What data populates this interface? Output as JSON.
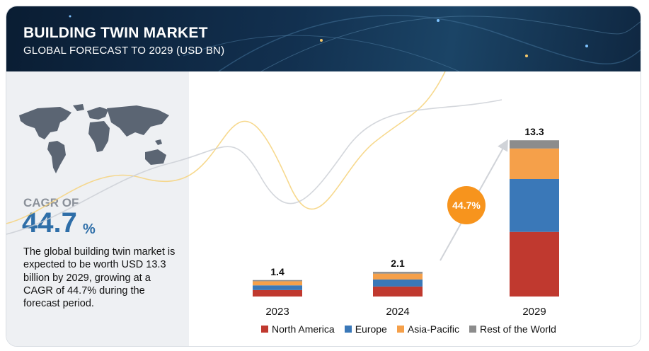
{
  "header": {
    "title": "BUILDING TWIN MARKET",
    "subtitle": "GLOBAL FORECAST TO 2029 (USD BN)"
  },
  "left_panel": {
    "cagr_label": "CAGR OF",
    "cagr_value": "44.7",
    "cagr_unit": "%",
    "description": "The global building twin market is expected to be worth USD 13.3 billion by 2029, growing at a CAGR of 44.7% during the forecast period."
  },
  "colors": {
    "North America": "#c0392f",
    "Europe": "#3a78b8",
    "Asia-Pacific": "#f5a04a",
    "Rest of the World": "#8c8c8c",
    "badge": "#f7941d"
  },
  "chart_data": {
    "type": "bar",
    "stacked": true,
    "categories": [
      "2023",
      "2024",
      "2029"
    ],
    "totals": [
      "1.4",
      "2.1",
      "13.3"
    ],
    "series": [
      {
        "name": "North America",
        "values": [
          0.55,
          0.85,
          5.5
        ]
      },
      {
        "name": "Europe",
        "values": [
          0.4,
          0.6,
          4.5
        ]
      },
      {
        "name": "Asia-Pacific",
        "values": [
          0.35,
          0.5,
          2.6
        ]
      },
      {
        "name": "Rest of the World",
        "values": [
          0.1,
          0.15,
          0.7
        ]
      }
    ],
    "cagr_badge": "44.7%",
    "legend_position": "bottom",
    "grid": false
  }
}
